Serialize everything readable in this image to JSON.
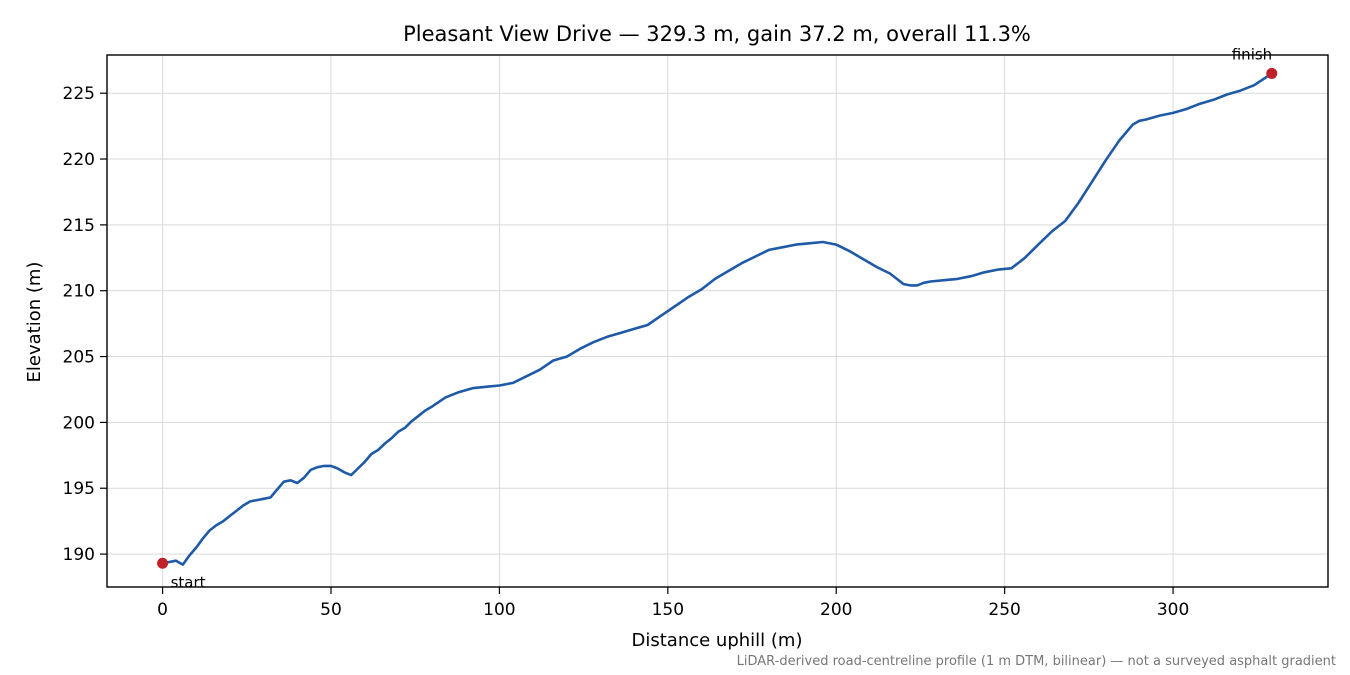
{
  "chart_data": {
    "type": "line",
    "title": "Pleasant View Drive — 329.3 m, gain 37.2 m, overall 11.3%",
    "xlabel": "Distance uphill (m)",
    "ylabel": "Elevation (m)",
    "xlim": [
      -16.5,
      346
    ],
    "ylim": [
      187.5,
      227.9
    ],
    "x_ticks": [
      0,
      50,
      100,
      150,
      200,
      250,
      300
    ],
    "y_ticks": [
      190,
      195,
      200,
      205,
      210,
      215,
      220,
      225
    ],
    "grid": true,
    "footnote": "LiDAR-derived road-centreline profile (1 m DTM, bilinear) — not a surveyed asphalt gradient",
    "series": [
      {
        "color": "#1f5aa6",
        "x": [
          0,
          2,
          4,
          6,
          8,
          10,
          12,
          14,
          16,
          18,
          20,
          22,
          24,
          26,
          28,
          30,
          32,
          34,
          36,
          38,
          40,
          42,
          44,
          46,
          48,
          50,
          52,
          54,
          56,
          58,
          60,
          62,
          64,
          66,
          68,
          70,
          72,
          74,
          76,
          78,
          80,
          84,
          88,
          92,
          96,
          100,
          104,
          108,
          112,
          116,
          120,
          124,
          128,
          132,
          136,
          140,
          144,
          148,
          152,
          156,
          160,
          164,
          168,
          172,
          176,
          180,
          184,
          188,
          192,
          196,
          200,
          204,
          208,
          212,
          216,
          220,
          222,
          224,
          226,
          228,
          232,
          236,
          240,
          244,
          248,
          252,
          256,
          260,
          264,
          268,
          272,
          276,
          280,
          284,
          288,
          290,
          292,
          296,
          300,
          304,
          308,
          312,
          316,
          320,
          324,
          327,
          329.3
        ],
        "y": [
          189.3,
          189.4,
          189.5,
          189.2,
          189.9,
          190.5,
          191.2,
          191.8,
          192.2,
          192.5,
          192.9,
          193.3,
          193.7,
          194.0,
          194.1,
          194.2,
          194.3,
          194.9,
          195.5,
          195.6,
          195.4,
          195.8,
          196.4,
          196.6,
          196.7,
          196.7,
          196.5,
          196.2,
          196.0,
          196.5,
          197.0,
          197.6,
          197.9,
          198.4,
          198.8,
          199.3,
          199.6,
          200.1,
          200.5,
          200.9,
          201.2,
          201.9,
          202.3,
          202.6,
          202.7,
          202.8,
          203.0,
          203.5,
          204.0,
          204.7,
          205.0,
          205.6,
          206.1,
          206.5,
          206.8,
          207.1,
          207.4,
          208.1,
          208.8,
          209.5,
          210.1,
          210.9,
          211.5,
          212.1,
          212.6,
          213.1,
          213.3,
          213.5,
          213.6,
          213.7,
          213.5,
          213.0,
          212.4,
          211.8,
          211.3,
          210.5,
          210.4,
          210.4,
          210.6,
          210.7,
          210.8,
          210.9,
          211.1,
          211.4,
          211.6,
          211.7,
          212.5,
          213.5,
          214.5,
          215.3,
          216.7,
          218.3,
          219.9,
          221.4,
          222.6,
          222.9,
          223.0,
          223.3,
          223.5,
          223.8,
          224.2,
          224.5,
          224.9,
          225.2,
          225.6,
          226.1,
          226.5
        ]
      }
    ],
    "markers": [
      {
        "label": "start",
        "x": 0,
        "y": 189.3,
        "color": "#c0202a"
      },
      {
        "label": "finish",
        "x": 329.3,
        "y": 226.5,
        "color": "#c0202a"
      }
    ]
  }
}
